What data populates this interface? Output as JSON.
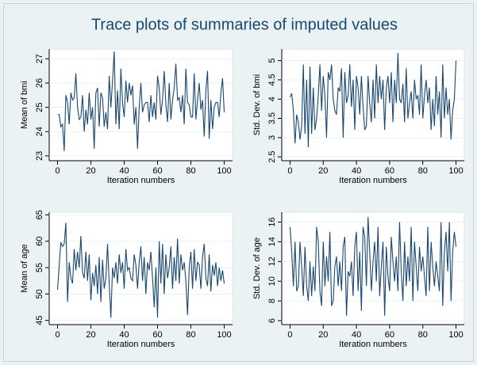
{
  "title": "Trace plots of summaries of imputed values",
  "chart_data": [
    {
      "type": "line",
      "y_label": "Mean of bmi",
      "x_label": "Iteration numbers",
      "color": "#1a476f",
      "x": [
        0,
        1,
        2,
        3,
        4,
        5,
        6,
        7,
        8,
        9,
        10,
        11,
        12,
        13,
        14,
        15,
        16,
        17,
        18,
        19,
        20,
        21,
        22,
        23,
        24,
        25,
        26,
        27,
        28,
        29,
        30,
        31,
        32,
        33,
        34,
        35,
        36,
        37,
        38,
        39,
        40,
        41,
        42,
        43,
        44,
        45,
        46,
        47,
        48,
        49,
        50,
        51,
        52,
        53,
        54,
        55,
        56,
        57,
        58,
        59,
        60,
        61,
        62,
        63,
        64,
        65,
        66,
        67,
        68,
        69,
        70,
        71,
        72,
        73,
        74,
        75,
        76,
        77,
        78,
        79,
        80,
        81,
        82,
        83,
        84,
        85,
        86,
        87,
        88,
        89,
        90,
        91,
        92,
        93,
        94,
        95,
        96,
        97,
        98,
        99,
        100
      ],
      "values": [
        24.7,
        24.7,
        24.2,
        24.3,
        23.2,
        25.5,
        25.2,
        24.3,
        25.6,
        25.3,
        25.4,
        26.4,
        25.0,
        24.5,
        24.6,
        25.5,
        24.0,
        24.9,
        24.3,
        25.6,
        24.5,
        25.0,
        23.3,
        25.6,
        25.8,
        24.2,
        25.6,
        25.4,
        24.2,
        24.8,
        24.1,
        26.3,
        25.0,
        26.1,
        27.3,
        24.3,
        25.7,
        24.1,
        26.6,
        25.2,
        24.6,
        26.1,
        25.2,
        26.0,
        25.5,
        25.9,
        24.3,
        25.0,
        23.3,
        25.0,
        26.0,
        24.8,
        25.1,
        25.2,
        25.2,
        24.4,
        25.5,
        24.6,
        25.2,
        24.5,
        26.3,
        25.8,
        24.7,
        25.3,
        26.5,
        25.1,
        24.4,
        26.0,
        24.5,
        25.3,
        25.8,
        26.8,
        25.3,
        25.4,
        24.8,
        25.5,
        24.3,
        26.6,
        25.2,
        25.1,
        24.6,
        24.6,
        26.4,
        24.5,
        25.3,
        26.0,
        24.9,
        25.3,
        23.8,
        25.7,
        26.5,
        23.7,
        25.3,
        24.1,
        25.0,
        25.2,
        25.2,
        24.6,
        25.6,
        26.2,
        24.8
      ],
      "xlim": [
        -5,
        105
      ],
      "ylim": [
        22.8,
        27.4
      ],
      "xticks": [
        0,
        20,
        40,
        60,
        80,
        100
      ],
      "yticks": [
        23,
        24,
        25,
        26,
        27
      ]
    },
    {
      "type": "line",
      "y_label": "Std. Dev. of bmi",
      "x_label": "Iteration numbers",
      "color": "#1a476f",
      "x": [
        0,
        1,
        2,
        3,
        4,
        5,
        6,
        7,
        8,
        9,
        10,
        11,
        12,
        13,
        14,
        15,
        16,
        17,
        18,
        19,
        20,
        21,
        22,
        23,
        24,
        25,
        26,
        27,
        28,
        29,
        30,
        31,
        32,
        33,
        34,
        35,
        36,
        37,
        38,
        39,
        40,
        41,
        42,
        43,
        44,
        45,
        46,
        47,
        48,
        49,
        50,
        51,
        52,
        53,
        54,
        55,
        56,
        57,
        58,
        59,
        60,
        61,
        62,
        63,
        64,
        65,
        66,
        67,
        68,
        69,
        70,
        71,
        72,
        73,
        74,
        75,
        76,
        77,
        78,
        79,
        80,
        81,
        82,
        83,
        84,
        85,
        86,
        87,
        88,
        89,
        90,
        91,
        92,
        93,
        94,
        95,
        96,
        97,
        98,
        99,
        100
      ],
      "values": [
        4.05,
        4.15,
        3.7,
        2.85,
        3.6,
        3.4,
        2.95,
        3.3,
        4.9,
        3.1,
        4.5,
        2.75,
        4.85,
        3.1,
        4.3,
        3.2,
        3.5,
        4.1,
        4.9,
        3.7,
        4.6,
        4.1,
        3.0,
        4.7,
        4.5,
        4.9,
        4.0,
        3.7,
        3.6,
        4.3,
        4.2,
        4.8,
        3.0,
        4.7,
        3.9,
        4.1,
        4.9,
        3.8,
        4.5,
        3.2,
        4.6,
        4.3,
        3.6,
        4.6,
        3.8,
        3.2,
        3.3,
        4.6,
        3.9,
        3.4,
        4.5,
        3.5,
        4.9,
        3.9,
        4.6,
        4.0,
        4.5,
        3.2,
        4.3,
        4.6,
        3.9,
        4.7,
        3.4,
        4.5,
        3.9,
        5.2,
        4.0,
        3.9,
        4.4,
        3.4,
        4.8,
        3.5,
        3.9,
        4.2,
        3.5,
        4.5,
        4.0,
        4.1,
        3.6,
        4.9,
        3.5,
        4.1,
        4.5,
        3.9,
        4.3,
        3.2,
        4.0,
        3.3,
        4.6,
        3.6,
        4.2,
        3.0,
        4.9,
        3.5,
        4.3,
        3.6,
        4.0,
        2.95,
        3.7,
        4.0,
        5.0
      ],
      "xlim": [
        -5,
        105
      ],
      "ylim": [
        2.4,
        5.3
      ],
      "xticks": [
        0,
        20,
        40,
        60,
        80,
        100
      ],
      "yticks": [
        2.5,
        3,
        3.5,
        4,
        4.5,
        5
      ]
    },
    {
      "type": "line",
      "y_label": "Mean of age",
      "x_label": "Iteration numbers",
      "color": "#1a476f",
      "x": [
        0,
        1,
        2,
        3,
        4,
        5,
        6,
        7,
        8,
        9,
        10,
        11,
        12,
        13,
        14,
        15,
        16,
        17,
        18,
        19,
        20,
        21,
        22,
        23,
        24,
        25,
        26,
        27,
        28,
        29,
        30,
        31,
        32,
        33,
        34,
        35,
        36,
        37,
        38,
        39,
        40,
        41,
        42,
        43,
        44,
        45,
        46,
        47,
        48,
        49,
        50,
        51,
        52,
        53,
        54,
        55,
        56,
        57,
        58,
        59,
        60,
        61,
        62,
        63,
        64,
        65,
        66,
        67,
        68,
        69,
        70,
        71,
        72,
        73,
        74,
        75,
        76,
        77,
        78,
        79,
        80,
        81,
        82,
        83,
        84,
        85,
        86,
        87,
        88,
        89,
        90,
        91,
        92,
        93,
        94,
        95,
        96,
        97,
        98,
        99,
        100
      ],
      "values": [
        50.8,
        55.5,
        59.8,
        59.0,
        59.5,
        63.5,
        48.5,
        56.0,
        53.0,
        52.0,
        58.5,
        54.5,
        58.0,
        55.0,
        61.0,
        54.0,
        53.0,
        58.0,
        52.5,
        57.5,
        48.8,
        54.0,
        51.5,
        55.5,
        50.0,
        57.0,
        48.5,
        56.5,
        51.0,
        53.0,
        59.5,
        52.0,
        45.5,
        55.0,
        53.0,
        56.0,
        52.0,
        57.5,
        54.0,
        56.0,
        51.0,
        58.5,
        54.5,
        55.0,
        53.0,
        52.5,
        57.5,
        55.5,
        51.0,
        56.0,
        59.0,
        52.5,
        57.0,
        50.0,
        56.0,
        54.5,
        58.0,
        53.0,
        47.5,
        55.0,
        45.5,
        60.0,
        52.0,
        59.5,
        50.0,
        57.5,
        53.0,
        55.0,
        59.0,
        51.0,
        57.0,
        52.5,
        60.5,
        52.0,
        57.5,
        54.5,
        56.0,
        52.5,
        46.0,
        55.0,
        58.0,
        51.0,
        58.5,
        52.5,
        56.0,
        55.5,
        51.0,
        57.0,
        59.5,
        53.0,
        51.5,
        57.5,
        50.5,
        55.5,
        53.5,
        56.0,
        51.5,
        55.0,
        52.5,
        54.5,
        52.0
      ],
      "xlim": [
        -5,
        105
      ],
      "ylim": [
        44.2,
        65.5
      ],
      "xticks": [
        0,
        20,
        40,
        60,
        80,
        100
      ],
      "yticks": [
        45,
        50,
        55,
        60,
        65
      ]
    },
    {
      "type": "line",
      "y_label": "Std. Dev. of age",
      "x_label": "Iteration numbers",
      "color": "#1a476f",
      "x": [
        0,
        1,
        2,
        3,
        4,
        5,
        6,
        7,
        8,
        9,
        10,
        11,
        12,
        13,
        14,
        15,
        16,
        17,
        18,
        19,
        20,
        21,
        22,
        23,
        24,
        25,
        26,
        27,
        28,
        29,
        30,
        31,
        32,
        33,
        34,
        35,
        36,
        37,
        38,
        39,
        40,
        41,
        42,
        43,
        44,
        45,
        46,
        47,
        48,
        49,
        50,
        51,
        52,
        53,
        54,
        55,
        56,
        57,
        58,
        59,
        60,
        61,
        62,
        63,
        64,
        65,
        66,
        67,
        68,
        69,
        70,
        71,
        72,
        73,
        74,
        75,
        76,
        77,
        78,
        79,
        80,
        81,
        82,
        83,
        84,
        85,
        86,
        87,
        88,
        89,
        90,
        91,
        92,
        93,
        94,
        95,
        96,
        97,
        98,
        99,
        100
      ],
      "values": [
        15.5,
        13.0,
        9.5,
        14.0,
        9.0,
        9.5,
        14.0,
        11.5,
        8.5,
        13.5,
        9.5,
        8.0,
        12.0,
        8.5,
        11.5,
        9.0,
        15.5,
        14.0,
        9.0,
        7.5,
        14.0,
        9.5,
        12.5,
        10.0,
        15.0,
        7.5,
        8.0,
        11.5,
        12.5,
        9.5,
        12.0,
        9.0,
        13.5,
        14.5,
        6.5,
        11.0,
        10.5,
        12.0,
        8.5,
        13.5,
        15.0,
        9.0,
        13.0,
        7.0,
        15.5,
        14.5,
        9.5,
        16.5,
        13.0,
        9.0,
        12.0,
        14.0,
        10.0,
        15.5,
        8.5,
        11.5,
        14.0,
        6.5,
        13.5,
        10.5,
        9.0,
        14.5,
        12.0,
        10.0,
        12.5,
        9.0,
        16.0,
        11.0,
        8.0,
        14.0,
        9.5,
        12.5,
        10.0,
        15.5,
        8.0,
        14.0,
        11.5,
        9.0,
        13.5,
        11.0,
        12.5,
        10.5,
        8.5,
        15.5,
        9.0,
        14.0,
        11.5,
        9.5,
        12.0,
        10.5,
        9.0,
        16.0,
        7.5,
        13.0,
        15.0,
        11.0,
        16.0,
        8.0,
        13.0,
        15.0,
        13.5
      ],
      "xlim": [
        -5,
        105
      ],
      "ylim": [
        5.6,
        17.0
      ],
      "xticks": [
        0,
        20,
        40,
        60,
        80,
        100
      ],
      "yticks": [
        6,
        8,
        10,
        12,
        14,
        16
      ]
    }
  ]
}
